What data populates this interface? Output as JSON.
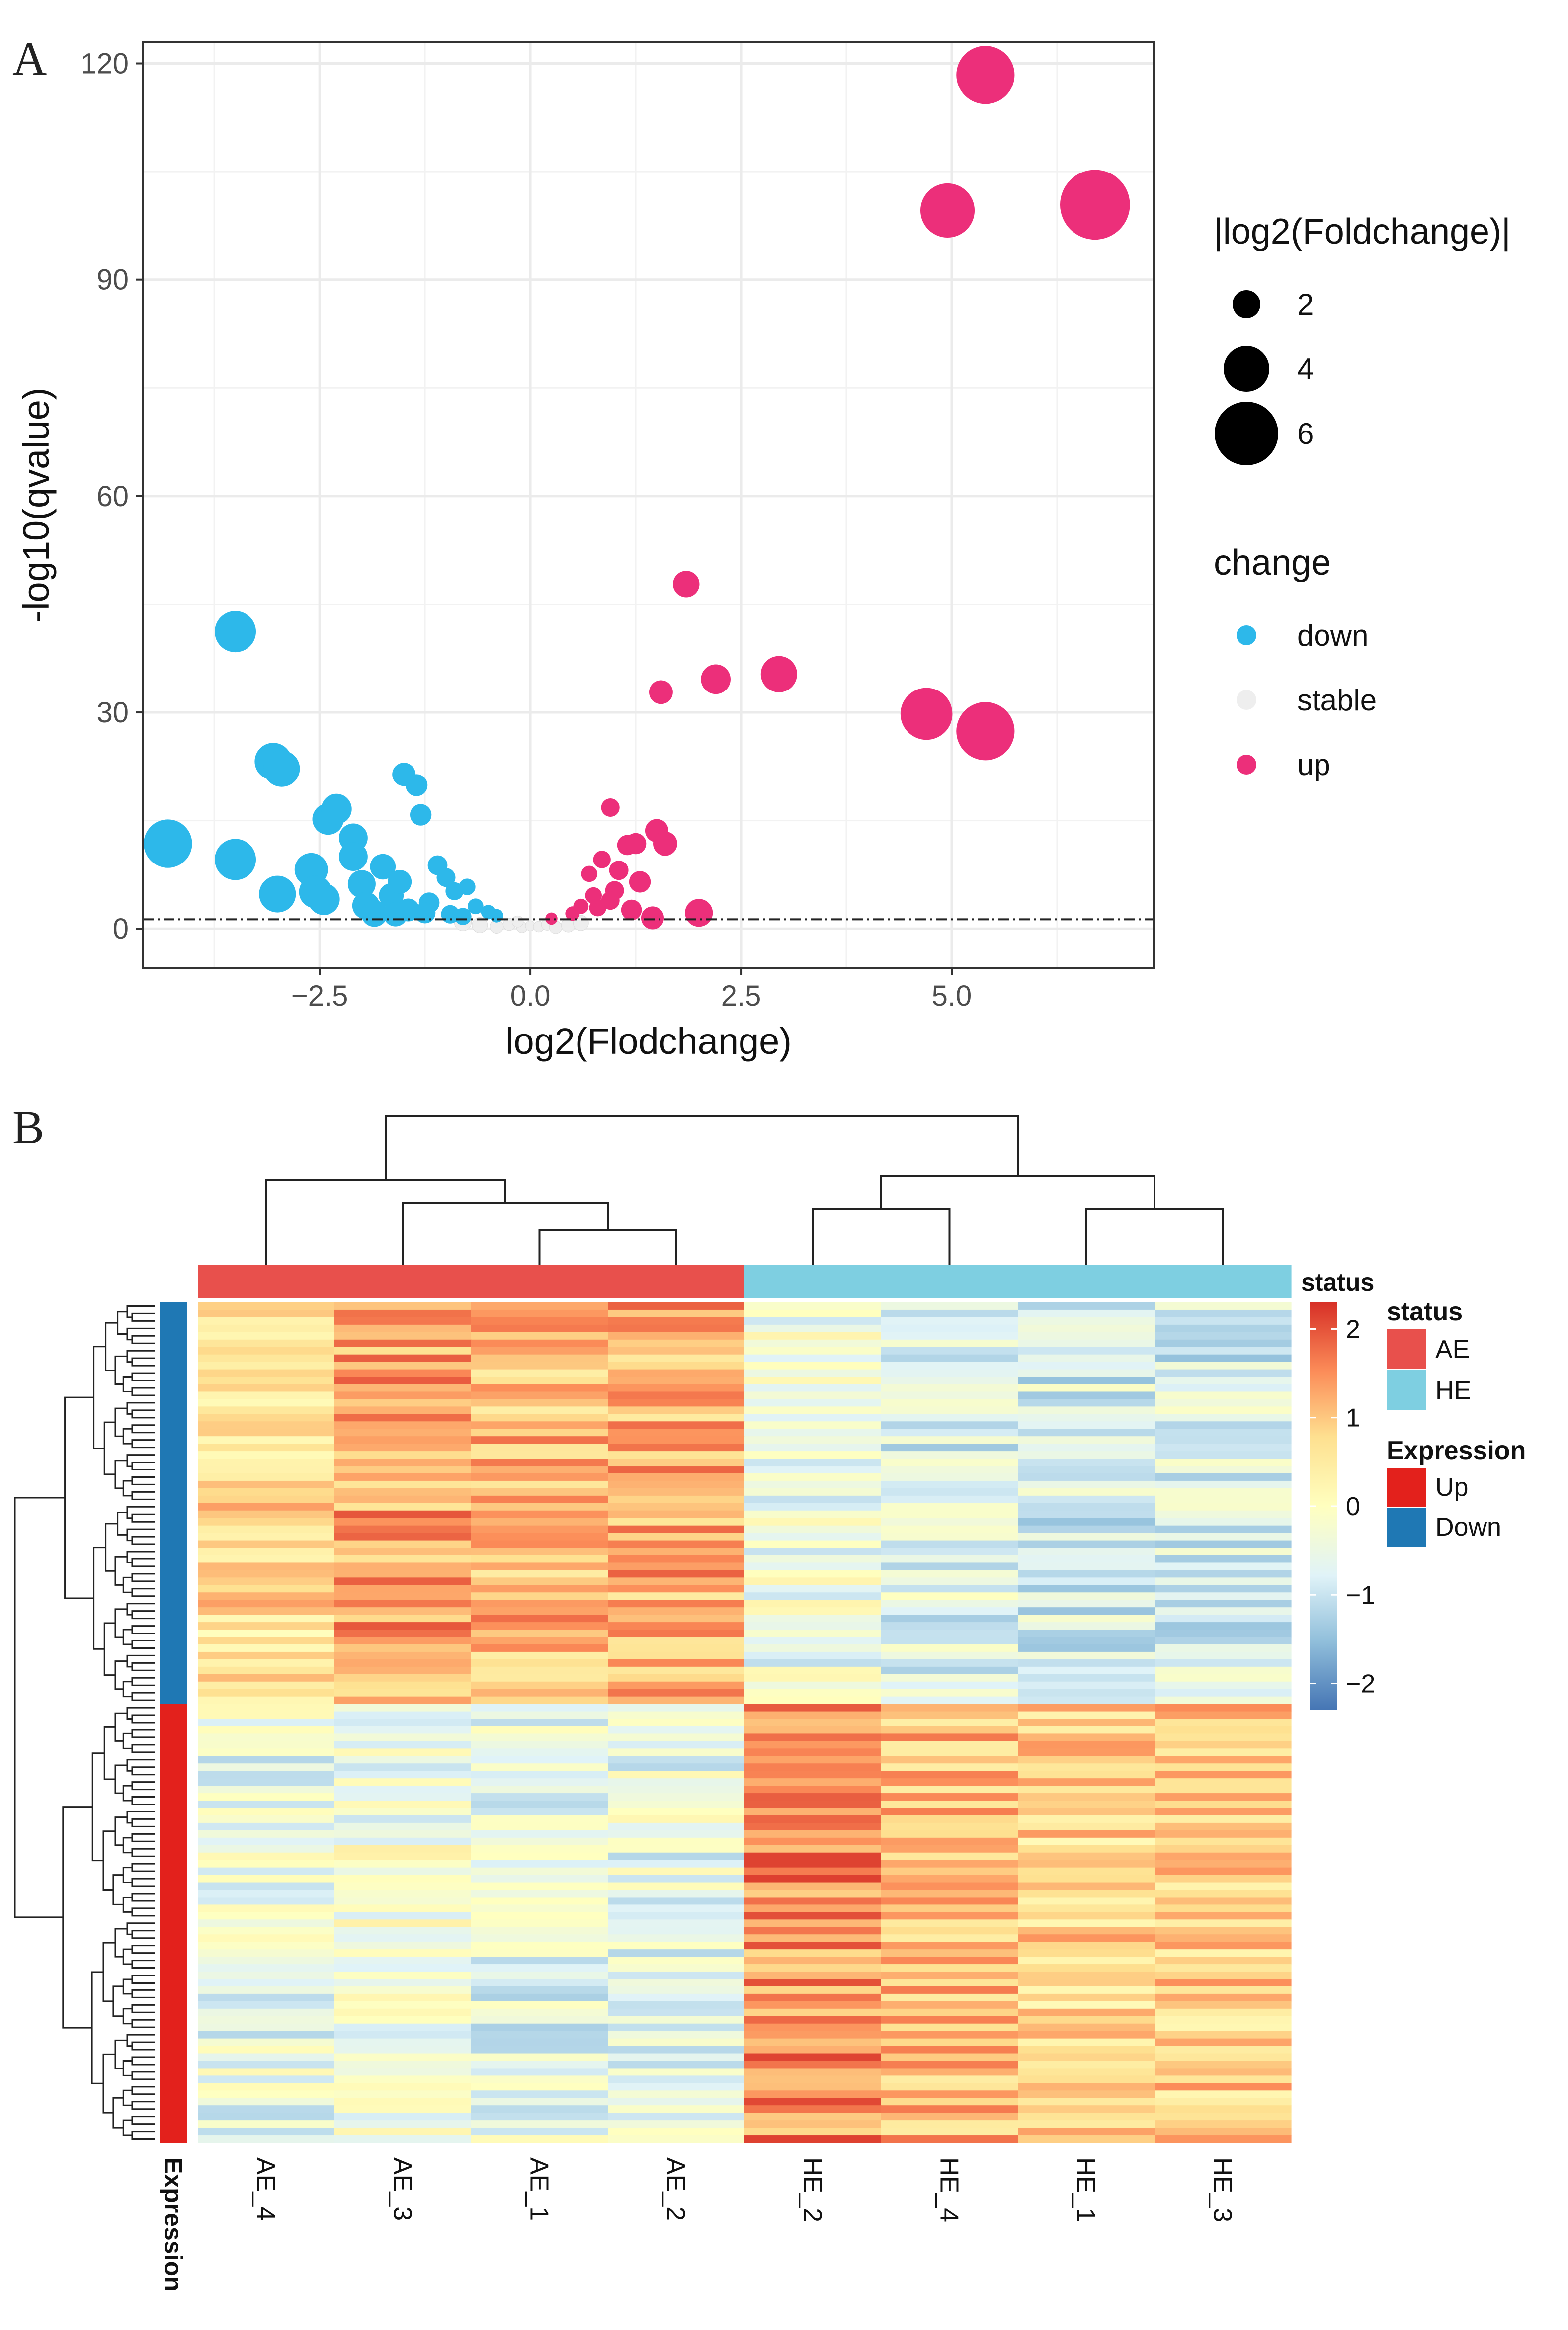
{
  "panelA": {
    "letter": "A",
    "chart_data": {
      "type": "scatter",
      "xlabel": "log2(Flodchange)",
      "ylabel": "-log10(qvalue)",
      "xlim": [
        -4.6,
        7.4
      ],
      "ylim": [
        -5.5,
        123
      ],
      "xticks": [
        -2.5,
        0.0,
        2.5,
        5.0
      ],
      "xtick_labels": [
        "−2.5",
        "0.0",
        "2.5",
        "5.0"
      ],
      "yticks": [
        0,
        30,
        60,
        90,
        120
      ],
      "ytick_labels": [
        "0",
        "30",
        "60",
        "90",
        "120"
      ],
      "threshold_y": 1.3,
      "grid": true,
      "legend_position": "right",
      "size_legend": {
        "title": "|log2(Foldchange)|",
        "entries": [
          {
            "value": 2,
            "label": "2"
          },
          {
            "value": 4,
            "label": "4"
          },
          {
            "value": 6,
            "label": "6"
          }
        ]
      },
      "color_legend": {
        "title": "change",
        "entries": [
          {
            "key": "down",
            "label": "down",
            "color": "#2db8ea"
          },
          {
            "key": "stable",
            "label": "stable",
            "color": "#eeeeee"
          },
          {
            "key": "up",
            "label": "up",
            "color": "#ec2f7a"
          }
        ]
      },
      "series": [
        {
          "name": "down",
          "color": "#2db8ea",
          "points": [
            [
              -4.3,
              11.8
            ],
            [
              -3.5,
              41.2
            ],
            [
              -3.5,
              9.6
            ],
            [
              -3.05,
              23.2
            ],
            [
              -2.95,
              22.2
            ],
            [
              -3.0,
              4.8
            ],
            [
              -2.4,
              15.2
            ],
            [
              -2.3,
              16.6
            ],
            [
              -2.6,
              8.2
            ],
            [
              -2.55,
              5.1
            ],
            [
              -2.45,
              4.1
            ],
            [
              -2.1,
              12.6
            ],
            [
              -2.1,
              10.0
            ],
            [
              -2.0,
              6.2
            ],
            [
              -1.95,
              3.2
            ],
            [
              -1.75,
              8.6
            ],
            [
              -1.65,
              4.6
            ],
            [
              -1.5,
              21.4
            ],
            [
              -1.35,
              19.9
            ],
            [
              -1.3,
              15.8
            ],
            [
              -1.55,
              6.5
            ],
            [
              -1.2,
              3.6
            ],
            [
              -1.1,
              8.8
            ],
            [
              -1.0,
              7.1
            ],
            [
              -0.9,
              5.2
            ],
            [
              -0.75,
              5.8
            ],
            [
              -0.65,
              3.1
            ],
            [
              -0.5,
              2.3
            ],
            [
              -0.4,
              1.8
            ],
            [
              -1.85,
              2.1
            ],
            [
              -1.6,
              2.0
            ],
            [
              -1.45,
              2.6
            ],
            [
              -1.25,
              2.2
            ],
            [
              -0.95,
              2.0
            ],
            [
              -0.8,
              1.7
            ]
          ]
        },
        {
          "name": "stable",
          "color": "#eeeeee",
          "points": [
            [
              -0.6,
              0.5
            ],
            [
              -0.4,
              0.3
            ],
            [
              -0.25,
              0.6
            ],
            [
              -0.1,
              0.2
            ],
            [
              0.0,
              0.4
            ],
            [
              0.1,
              0.3
            ],
            [
              0.2,
              0.6
            ],
            [
              0.3,
              0.2
            ],
            [
              0.45,
              0.5
            ],
            [
              -0.8,
              0.9
            ],
            [
              0.6,
              0.8
            ],
            [
              -0.15,
              1.0
            ]
          ]
        },
        {
          "name": "up",
          "color": "#ec2f7a",
          "points": [
            [
              5.4,
              118.4
            ],
            [
              4.95,
              99.6
            ],
            [
              6.7,
              100.4
            ],
            [
              1.85,
              47.8
            ],
            [
              2.2,
              34.6
            ],
            [
              2.95,
              35.3
            ],
            [
              1.55,
              32.8
            ],
            [
              4.7,
              29.8
            ],
            [
              5.4,
              27.4
            ],
            [
              0.95,
              16.8
            ],
            [
              1.5,
              13.6
            ],
            [
              1.6,
              11.8
            ],
            [
              1.15,
              11.6
            ],
            [
              1.25,
              11.8
            ],
            [
              0.85,
              9.6
            ],
            [
              1.05,
              8.1
            ],
            [
              0.7,
              7.6
            ],
            [
              1.3,
              6.5
            ],
            [
              1.0,
              5.3
            ],
            [
              0.6,
              3.1
            ],
            [
              0.8,
              2.9
            ],
            [
              1.2,
              2.6
            ],
            [
              0.5,
              2.1
            ],
            [
              0.25,
              1.4
            ],
            [
              1.45,
              1.5
            ],
            [
              2.0,
              2.2
            ],
            [
              0.75,
              4.6
            ],
            [
              0.95,
              3.9
            ]
          ]
        }
      ]
    }
  },
  "panelB": {
    "letter": "B",
    "chart_data": {
      "type": "heatmap",
      "columns": [
        "AE_4",
        "AE_3",
        "AE_1",
        "AE_2",
        "HE_2",
        "HE_4",
        "HE_1",
        "HE_3"
      ],
      "column_status": [
        "AE",
        "AE",
        "AE",
        "AE",
        "HE",
        "HE",
        "HE",
        "HE"
      ],
      "column_dendrogram_order_note": "AE_4 | (AE_3 | (AE_1, AE_2)) || (HE_2, HE_4) | (HE_1, HE_3)",
      "row_groups": [
        {
          "name": "Down",
          "rows": 54
        },
        {
          "name": "Up",
          "rows": 59
        }
      ],
      "color_scale": {
        "min": -2.3,
        "max": 2.3,
        "ticks": [
          2,
          1,
          0,
          -1,
          -2
        ],
        "tick_labels": [
          "2",
          "1",
          "0",
          "−1",
          "−2"
        ],
        "stops": [
          "#4575b4",
          "#91bfdb",
          "#e0f3f8",
          "#ffffbf",
          "#fee090",
          "#fc8d59",
          "#d73027"
        ]
      },
      "group_means": {
        "Down": [
          0.7,
          1.3,
          1.1,
          1.2,
          -0.4,
          -0.7,
          -0.8,
          -0.8
        ],
        "Up": [
          -0.5,
          -0.3,
          -0.6,
          -0.5,
          1.5,
          1.1,
          0.8,
          0.9
        ]
      },
      "legend": {
        "status_title": "status",
        "status_entries": [
          {
            "label": "AE",
            "color": "#e8504c"
          },
          {
            "label": "HE",
            "color": "#7ecfe1"
          }
        ],
        "expression_title": "Expression",
        "expression_entries": [
          {
            "label": "Up",
            "color": "#e3211c"
          },
          {
            "label": "Down",
            "color": "#1f78b4"
          }
        ]
      },
      "status_annotation_label": "status",
      "expression_annotation_label": "Expression"
    }
  }
}
